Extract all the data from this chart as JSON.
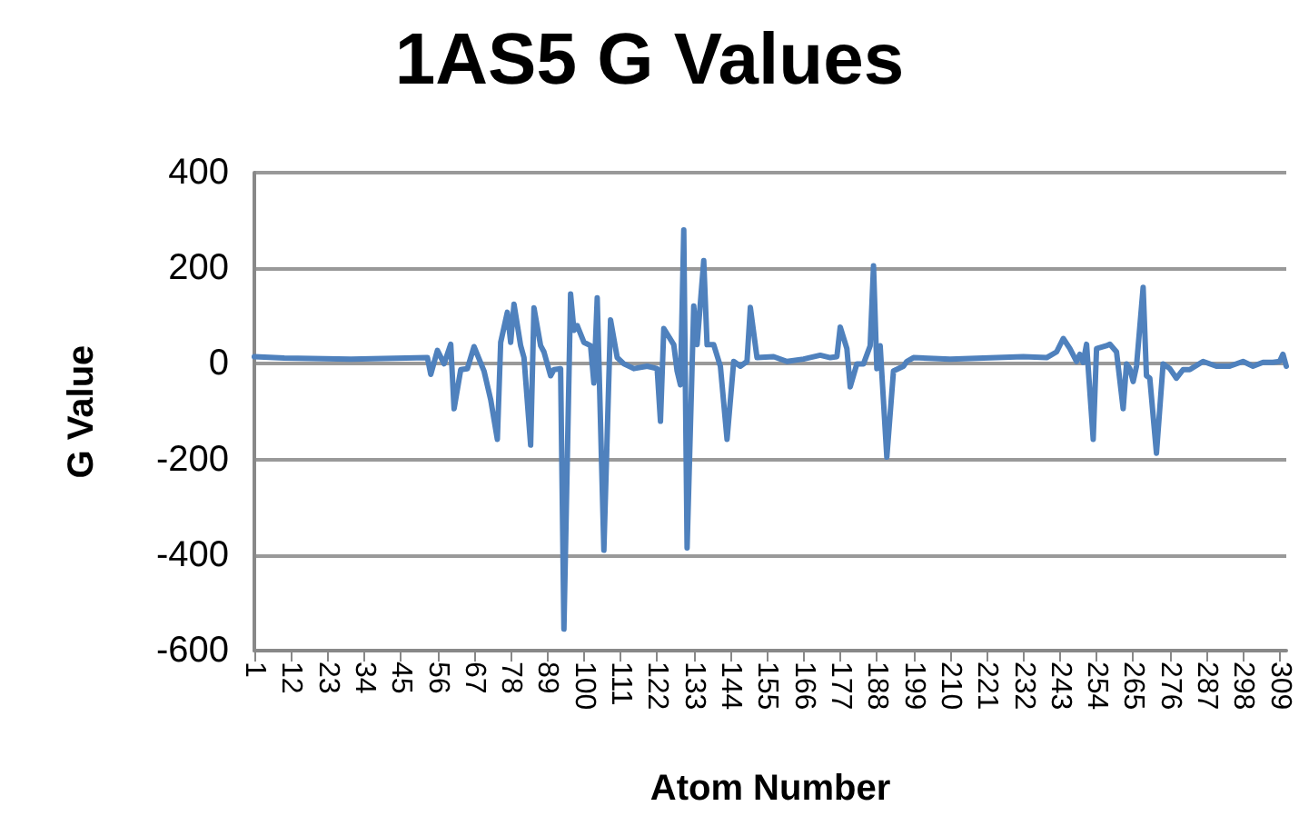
{
  "chart_data": {
    "type": "line",
    "title": "1AS5 G Values",
    "xlabel": "Atom Number",
    "ylabel": "G Value",
    "x": [
      1,
      10,
      30,
      53,
      54,
      56,
      58,
      60,
      61,
      63,
      65,
      67,
      70,
      72,
      74,
      75,
      77,
      78,
      79,
      81,
      82,
      84,
      85,
      87,
      88,
      90,
      91,
      93,
      94,
      96,
      97,
      98,
      100,
      102,
      103,
      104,
      106,
      108,
      110,
      112,
      115,
      119,
      122,
      123,
      124,
      127,
      128,
      129,
      130,
      131,
      133,
      134,
      136,
      137,
      139,
      141,
      143,
      145,
      147,
      149,
      150,
      152,
      157,
      161,
      166,
      171,
      174,
      176,
      177,
      179,
      180,
      182,
      184,
      186,
      187,
      188,
      189,
      191,
      193,
      196,
      197,
      199,
      210,
      232,
      239,
      242,
      244,
      246,
      248,
      249,
      250,
      251,
      253,
      254,
      257,
      258,
      260,
      262,
      263,
      264,
      265,
      266,
      268,
      269,
      270,
      272,
      274,
      276,
      278,
      280,
      282,
      286,
      290,
      294,
      298,
      301,
      304,
      307,
      309,
      310,
      311
    ],
    "series": [
      {
        "color": "#4f81bd",
        "values": [
          15,
          12,
          10,
          13,
          -22,
          28,
          0,
          41,
          -94,
          -12,
          -10,
          36,
          -15,
          -75,
          -158,
          45,
          108,
          45,
          125,
          38,
          13,
          -170,
          117,
          38,
          25,
          -25,
          -12,
          -10,
          -555,
          146,
          70,
          80,
          45,
          38,
          -40,
          138,
          -390,
          92,
          13,
          0,
          -10,
          -5,
          -10,
          -120,
          74,
          40,
          -15,
          -44,
          280,
          -385,
          121,
          40,
          216,
          40,
          40,
          -5,
          -158,
          5,
          -5,
          5,
          118,
          13,
          15,
          5,
          10,
          18,
          13,
          15,
          77,
          32,
          -48,
          0,
          0,
          38,
          205,
          -10,
          38,
          -195,
          -15,
          -5,
          5,
          13,
          10,
          15,
          13,
          25,
          53,
          32,
          5,
          20,
          3,
          41,
          -158,
          32,
          38,
          41,
          25,
          -94,
          0,
          -10,
          -37,
          -5,
          160,
          -25,
          -30,
          -187,
          0,
          -10,
          -30,
          -12,
          -12,
          5,
          -5,
          -5,
          5,
          -5,
          3,
          3,
          5,
          20,
          -5
        ]
      }
    ],
    "xlim": [
      1,
      311
    ],
    "xticks": [
      1,
      12,
      23,
      34,
      45,
      56,
      67,
      78,
      89,
      100,
      111,
      122,
      133,
      144,
      155,
      166,
      177,
      188,
      199,
      210,
      221,
      232,
      243,
      254,
      265,
      276,
      287,
      298,
      309
    ],
    "ylim": [
      -600,
      400
    ],
    "yticks": [
      -600,
      -400,
      -200,
      0,
      200,
      400
    ],
    "grid": "y",
    "marker": "none",
    "line_style": "solid"
  }
}
